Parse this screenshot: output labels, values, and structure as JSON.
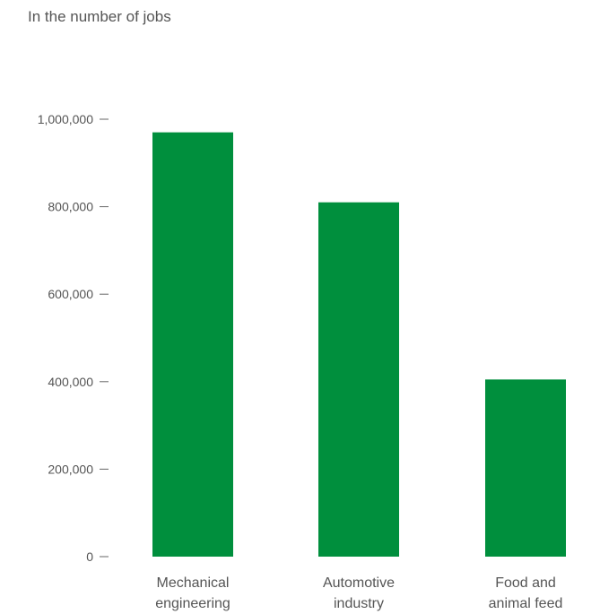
{
  "chart_data": {
    "type": "bar",
    "title": "In the number of jobs",
    "categories": [
      [
        "Mechanical",
        "engineering"
      ],
      [
        "Automotive",
        "industry"
      ],
      [
        "Food and",
        "animal feed"
      ]
    ],
    "values": [
      970000,
      810000,
      405000
    ],
    "y_ticks": [
      0,
      200000,
      400000,
      600000,
      800000,
      1000000
    ],
    "y_tick_labels": [
      "0",
      "200,000",
      "400,000",
      "600,000",
      "800,000",
      "1,000,000"
    ],
    "ylim": [
      0,
      1000000
    ],
    "bar_color": "#008f3d",
    "grid": false,
    "legend": "none"
  }
}
